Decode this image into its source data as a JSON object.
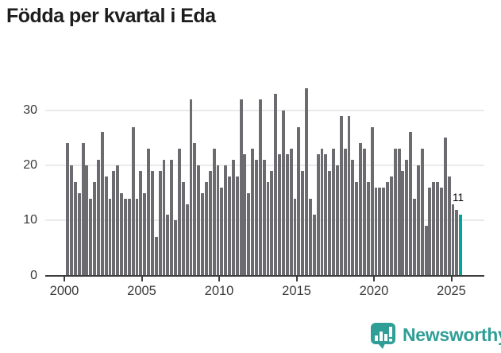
{
  "title": "Födda per kvartal i Eda",
  "annotation": {
    "label": "11"
  },
  "y_axis": {
    "tick_labels": [
      "0",
      "10",
      "20",
      "30"
    ],
    "gridline_values": [
      10,
      20,
      30
    ]
  },
  "x_axis": {
    "tick_labels": [
      "2000",
      "2005",
      "2010",
      "2015",
      "2020",
      "2025"
    ]
  },
  "logo": {
    "text": "Newsworthy",
    "icon": "bar-chart-speech-bubble-icon"
  },
  "colors": {
    "bar": "#6b6b70",
    "highlight": "#00a698",
    "logo": "#2f9e96",
    "grid": "#eaeaea",
    "axis": "#3d3d3d",
    "tick_text": "#3a3a3a",
    "title_text": "#1d1d1d",
    "annotation_text": "#000000"
  },
  "chart_data": {
    "type": "bar",
    "title": "Födda per kvartal i Eda",
    "xlabel": "",
    "ylabel": "",
    "x_start": "2000-Q1",
    "x_end": "2025-Q3",
    "ylim": [
      0,
      35
    ],
    "grid": "horizontal",
    "legend": "none",
    "highlight_last_bar": true,
    "last_value_label": "11",
    "years": [
      {
        "year": 2000,
        "values": [
          24,
          20,
          17,
          15
        ]
      },
      {
        "year": 2001,
        "values": [
          24,
          20,
          14,
          17
        ]
      },
      {
        "year": 2002,
        "values": [
          21,
          26,
          18,
          14
        ]
      },
      {
        "year": 2003,
        "values": [
          19,
          20,
          15,
          14
        ]
      },
      {
        "year": 2004,
        "values": [
          14,
          27,
          14,
          19
        ]
      },
      {
        "year": 2005,
        "values": [
          15,
          23,
          19,
          7
        ]
      },
      {
        "year": 2006,
        "values": [
          19,
          21,
          11,
          21
        ]
      },
      {
        "year": 2007,
        "values": [
          10,
          23,
          17,
          13
        ]
      },
      {
        "year": 2008,
        "values": [
          32,
          24,
          20,
          15
        ]
      },
      {
        "year": 2009,
        "values": [
          17,
          19,
          23,
          20
        ]
      },
      {
        "year": 2010,
        "values": [
          16,
          20,
          18,
          21
        ]
      },
      {
        "year": 2011,
        "values": [
          18,
          32,
          22,
          15
        ]
      },
      {
        "year": 2012,
        "values": [
          23,
          21,
          32,
          21
        ]
      },
      {
        "year": 2013,
        "values": [
          17,
          19,
          33,
          22
        ]
      },
      {
        "year": 2014,
        "values": [
          30,
          22,
          23,
          14
        ]
      },
      {
        "year": 2015,
        "values": [
          27,
          19,
          34,
          14
        ]
      },
      {
        "year": 2016,
        "values": [
          11,
          22,
          23,
          22
        ]
      },
      {
        "year": 2017,
        "values": [
          19,
          23,
          20,
          29
        ]
      },
      {
        "year": 2018,
        "values": [
          23,
          29,
          21,
          17
        ]
      },
      {
        "year": 2019,
        "values": [
          24,
          23,
          17,
          27
        ]
      },
      {
        "year": 2020,
        "values": [
          16,
          16,
          16,
          17
        ]
      },
      {
        "year": 2021,
        "values": [
          18,
          23,
          23,
          19
        ]
      },
      {
        "year": 2022,
        "values": [
          21,
          26,
          14,
          20
        ]
      },
      {
        "year": 2023,
        "values": [
          23,
          9,
          16,
          17
        ]
      },
      {
        "year": 2024,
        "values": [
          17,
          16,
          25,
          18
        ]
      },
      {
        "year": 2025,
        "values": [
          13,
          12,
          11
        ]
      }
    ]
  }
}
